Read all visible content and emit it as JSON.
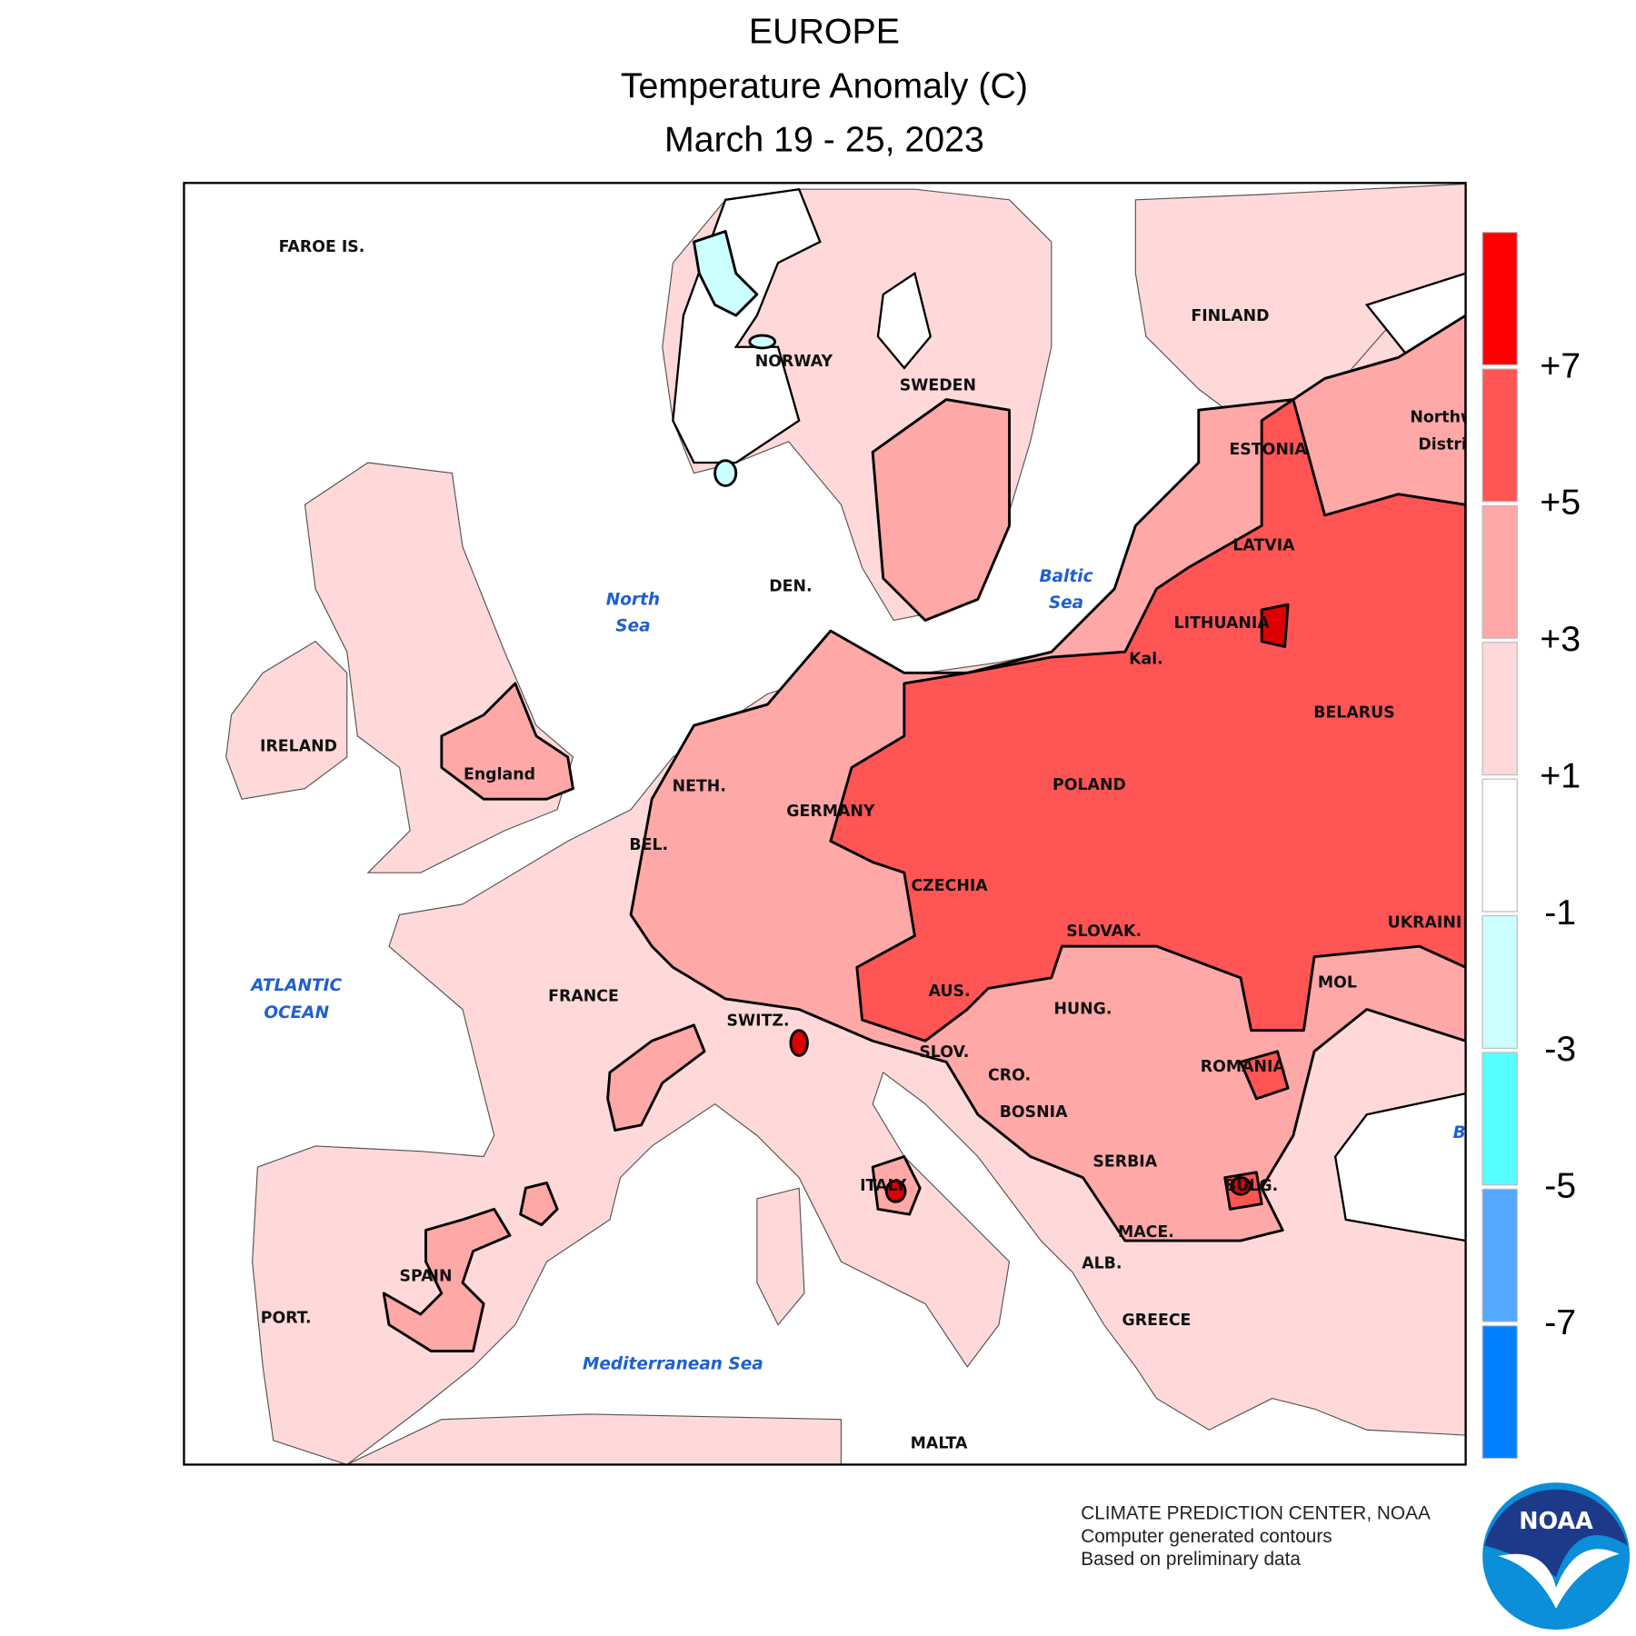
{
  "header": {
    "title": "EUROPE",
    "subtitle": "Temperature Anomaly (C)",
    "dates": "March 19 - 25, 2023"
  },
  "map": {
    "countries": [
      "FAROE IS.",
      "NORWAY",
      "SWEDEN",
      "FINLAND",
      "ESTONIA",
      "LATVIA",
      "LITHUANIA",
      "Kal.",
      "BELARUS",
      "POLAND",
      "GERMANY",
      "NETH.",
      "BEL.",
      "DEN.",
      "IRELAND",
      "England",
      "FRANCE",
      "SWITZ.",
      "AUS.",
      "CZECHIA",
      "SLOVAK.",
      "HUNG.",
      "SLOV.",
      "CRO.",
      "BOSNIA",
      "SERBIA",
      "ROMANIA",
      "MOL",
      "UKRAINI",
      "BULG.",
      "MACE.",
      "ALB.",
      "GREECE",
      "ITALY",
      "SPAIN",
      "PORT.",
      "MALTA",
      "Northw",
      "Distri"
    ],
    "seas": [
      "North",
      "Sea",
      "Baltic",
      "Sea",
      "ATLANTIC",
      "OCEAN",
      "Mediterranean Sea",
      "B"
    ]
  },
  "legend": {
    "colors": [
      "#ff0000",
      "#ff5555",
      "#ffa8a8",
      "#ffd9d9",
      "#ffffff",
      "#ccffff",
      "#55ffff",
      "#55a8ff",
      "#0080ff"
    ],
    "labels": [
      "+7",
      "+5",
      "+3",
      "+1",
      "-1",
      "-3",
      "-5",
      "-7"
    ]
  },
  "footer": {
    "credits": [
      "CLIMATE PREDICTION CENTER, NOAA",
      "Computer generated contours",
      "Based on preliminary data"
    ],
    "logo": "NOAA"
  }
}
